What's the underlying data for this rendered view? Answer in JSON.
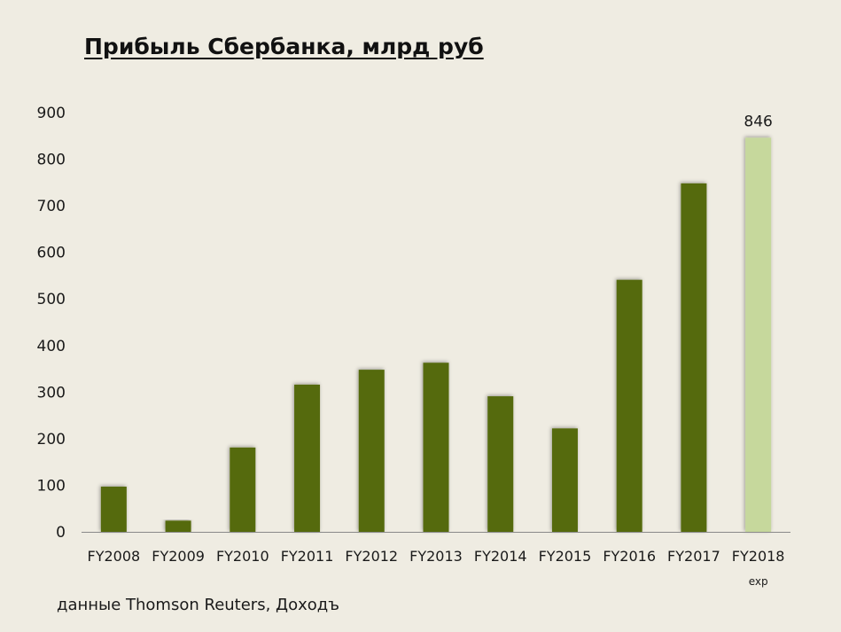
{
  "chart_data": {
    "type": "bar",
    "title": "Прибыль Сбербанка, млрд руб",
    "xlabel": "",
    "ylabel": "",
    "ylim": [
      0,
      900
    ],
    "yticks": [
      0,
      100,
      200,
      300,
      400,
      500,
      600,
      700,
      800,
      900
    ],
    "categories": [
      "FY2008",
      "FY2009",
      "FY2010",
      "FY2011",
      "FY2012",
      "FY2013",
      "FY2014",
      "FY2015",
      "FY2016",
      "FY2017",
      "FY2018"
    ],
    "values": [
      97,
      24,
      181,
      316,
      348,
      363,
      291,
      222,
      541,
      748,
      846
    ],
    "category_sublabels": [
      "",
      "",
      "",
      "",
      "",
      "",
      "",
      "",
      "",
      "",
      "exp"
    ],
    "data_labels": [
      "",
      "",
      "",
      "",
      "",
      "",
      "",
      "",
      "",
      "",
      "846"
    ],
    "grid": false,
    "legend": "none",
    "colors": {
      "actual": "#556b0e",
      "forecast": "#c6d89c",
      "axis": "#8a8a8a",
      "background": "#efece2"
    }
  },
  "source": "данные Thomson Reuters, Доходъ"
}
